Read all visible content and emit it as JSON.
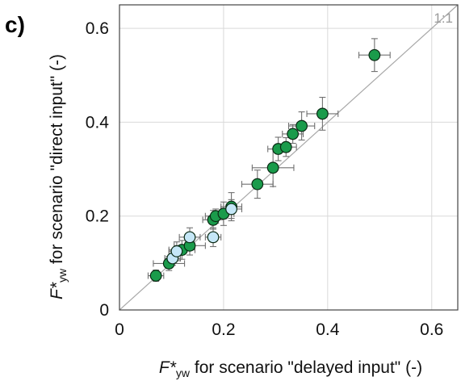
{
  "panel_label": "c)",
  "chart_data": {
    "type": "scatter",
    "xlabel": {
      "prefix": "F*",
      "sub": "yw",
      "rest": " for scenario \"delayed input\" (-)"
    },
    "ylabel": {
      "prefix": "F*",
      "sub": "yw",
      "rest": " for scenario \"direct input\" (-)"
    },
    "xlim": [
      0,
      0.65
    ],
    "ylim": [
      0,
      0.65
    ],
    "xticks": [
      0,
      0.2,
      0.4,
      0.6
    ],
    "yticks": [
      0,
      0.2,
      0.4,
      0.6
    ],
    "xtick_labels": [
      "0",
      "0.2",
      "0.4",
      "0.6"
    ],
    "ytick_labels": [
      "0",
      "0.2",
      "0.4",
      "0.6"
    ],
    "grid": true,
    "reference_line": {
      "label": "1:1",
      "slope": 1
    },
    "colors": {
      "green": "#1a9b4b",
      "light_blue": "#c5e7f7",
      "edge": "#0a2a14",
      "errorbar": "#707070",
      "grid": "#d9d9d9",
      "ref_line": "#a8a8a8"
    },
    "series": [
      {
        "color": "green",
        "points": [
          {
            "x": 0.07,
            "y": 0.073,
            "xerr": 0.015,
            "yerr": 0.012
          },
          {
            "x": 0.095,
            "y": 0.099,
            "xerr": 0.03,
            "yerr": 0.015
          },
          {
            "x": 0.12,
            "y": 0.128,
            "xerr": 0.025,
            "yerr": 0.02
          },
          {
            "x": 0.135,
            "y": 0.137,
            "xerr": 0.03,
            "yerr": 0.02
          },
          {
            "x": 0.18,
            "y": 0.192,
            "xerr": 0.02,
            "yerr": 0.02
          },
          {
            "x": 0.185,
            "y": 0.2,
            "xerr": 0.02,
            "yerr": 0.015
          },
          {
            "x": 0.2,
            "y": 0.205,
            "xerr": 0.02,
            "yerr": 0.025
          },
          {
            "x": 0.215,
            "y": 0.22,
            "xerr": 0.02,
            "yerr": 0.03
          },
          {
            "x": 0.265,
            "y": 0.268,
            "xerr": 0.03,
            "yerr": 0.03
          },
          {
            "x": 0.295,
            "y": 0.303,
            "xerr": 0.04,
            "yerr": 0.04
          },
          {
            "x": 0.305,
            "y": 0.343,
            "xerr": 0.02,
            "yerr": 0.025
          },
          {
            "x": 0.32,
            "y": 0.347,
            "xerr": 0.02,
            "yerr": 0.02
          },
          {
            "x": 0.333,
            "y": 0.375,
            "xerr": 0.02,
            "yerr": 0.02
          },
          {
            "x": 0.35,
            "y": 0.392,
            "xerr": 0.025,
            "yerr": 0.03
          },
          {
            "x": 0.39,
            "y": 0.418,
            "xerr": 0.03,
            "yerr": 0.035
          },
          {
            "x": 0.49,
            "y": 0.543,
            "xerr": 0.03,
            "yerr": 0.035
          }
        ]
      },
      {
        "color": "light_blue",
        "points": [
          {
            "x": 0.102,
            "y": 0.11,
            "xerr": 0.015,
            "yerr": 0.015
          },
          {
            "x": 0.11,
            "y": 0.125,
            "xerr": 0.015,
            "yerr": 0.02
          },
          {
            "x": 0.135,
            "y": 0.155,
            "xerr": 0.02,
            "yerr": 0.02
          },
          {
            "x": 0.18,
            "y": 0.155,
            "xerr": 0.015,
            "yerr": 0.02
          },
          {
            "x": 0.215,
            "y": 0.215,
            "xerr": 0.02,
            "yerr": 0.02
          }
        ]
      }
    ]
  }
}
